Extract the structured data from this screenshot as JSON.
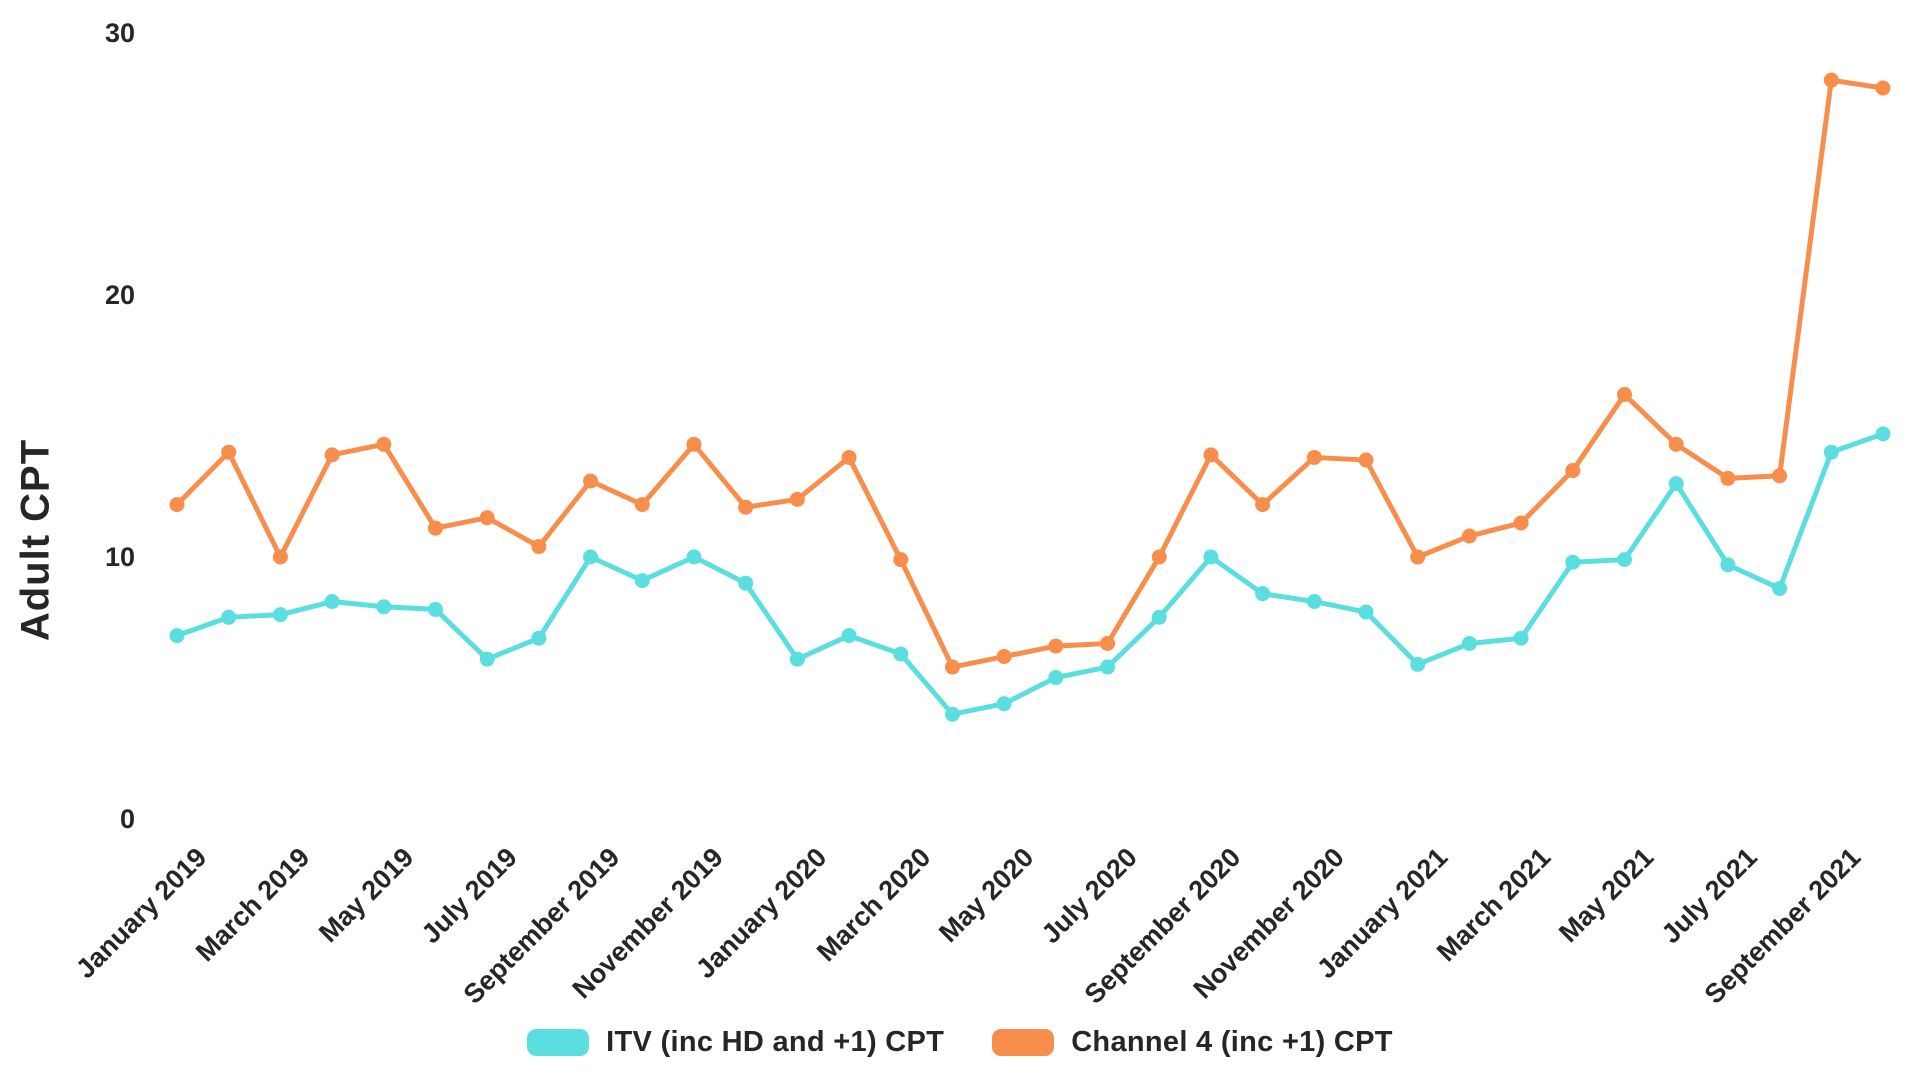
{
  "chart_data": {
    "type": "line",
    "title": "",
    "ylabel": "Adult CPT",
    "xlabel": "",
    "ylim": [
      0,
      30
    ],
    "y_ticks": [
      0,
      10,
      20,
      30
    ],
    "grid": false,
    "legend_position": "bottom",
    "background_color": "#ffffff",
    "text_color": "#262626",
    "x": [
      "January 2019",
      "February 2019",
      "March 2019",
      "April 2019",
      "May 2019",
      "June 2019",
      "July 2019",
      "August 2019",
      "September 2019",
      "October 2019",
      "November 2019",
      "December 2019",
      "January 2020",
      "February 2020",
      "March 2020",
      "April 2020",
      "May 2020",
      "June 2020",
      "July 2020",
      "August 2020",
      "September 2020",
      "October 2020",
      "November 2020",
      "December 2020",
      "January 2021",
      "February 2021",
      "March 2021",
      "April 2021",
      "May 2021",
      "June 2021",
      "July 2021",
      "August 2021",
      "September 2021",
      "October 2021"
    ],
    "x_tick_labels": [
      "January 2019",
      "March 2019",
      "May 2019",
      "July 2019",
      "September 2019",
      "November 2019",
      "January 2020",
      "March 2020",
      "May 2020",
      "July 2020",
      "September 2020",
      "November 2020",
      "January 2021",
      "March 2021",
      "May 2021",
      "July 2021",
      "September 2021"
    ],
    "x_tick_step": 2,
    "series": [
      {
        "name": "ITV (inc HD and +1) CPT",
        "color": "#5BDEE0",
        "values": [
          7.0,
          7.7,
          7.8,
          8.3,
          8.1,
          8.0,
          6.1,
          6.9,
          10.0,
          9.1,
          10.0,
          9.0,
          6.1,
          7.0,
          6.3,
          4.0,
          4.4,
          5.4,
          5.8,
          7.7,
          10.0,
          8.6,
          8.3,
          7.9,
          5.9,
          6.7,
          6.9,
          9.8,
          9.9,
          12.8,
          9.7,
          8.8,
          14.0,
          14.7
        ]
      },
      {
        "name": "Channel 4 (inc +1) CPT",
        "color": "#F78E4C",
        "values": [
          12.0,
          14.0,
          10.0,
          13.9,
          14.3,
          11.1,
          11.5,
          10.4,
          12.9,
          12.0,
          14.3,
          11.9,
          12.2,
          13.8,
          9.9,
          5.8,
          6.2,
          6.6,
          6.7,
          10.0,
          13.9,
          12.0,
          13.8,
          13.7,
          10.0,
          10.8,
          11.3,
          13.3,
          16.2,
          14.3,
          13.0,
          13.1,
          28.2,
          27.9
        ]
      }
    ]
  }
}
